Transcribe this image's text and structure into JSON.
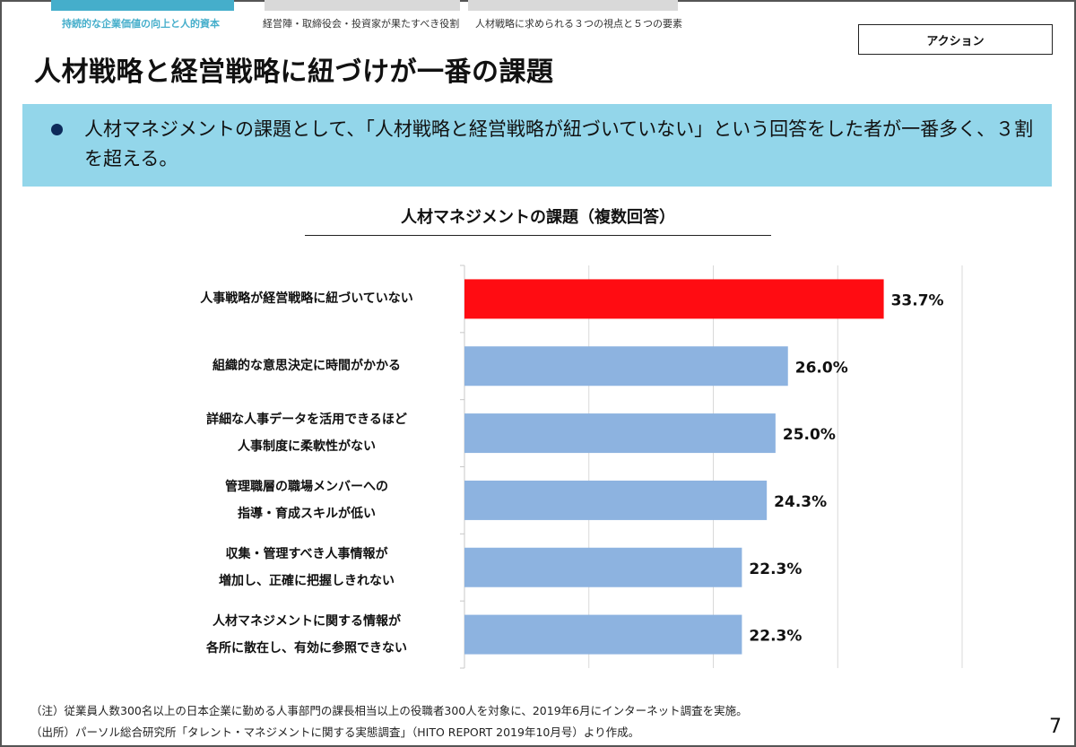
{
  "nav_tabs": [
    {
      "label": "持続的な企業価値の向上と人的資本",
      "active": true,
      "color": "#45aecb"
    },
    {
      "label": "経営陣・取締役会・投資家が果たすべき役割",
      "active": false,
      "color": "#d9d9d9"
    },
    {
      "label": "人材戦略に求められる３つの視点と５つの要素",
      "active": false,
      "color": "#d9d9d9"
    }
  ],
  "action_label": "アクション",
  "title": "人材戦略と経営戦略に紐づけが一番の課題",
  "callout": {
    "text": "人材マネジメントの課題として、「人材戦略と経営戦略が紐づいていない」という回答をした者が一番多く、３割を超える。",
    "background": "#93d6ea"
  },
  "chart_data": {
    "type": "bar",
    "orientation": "horizontal",
    "title": "人材マネジメントの課題（複数回答）",
    "categories": [
      "人事戦略が経営戦略に紐づいていない",
      "組織的な意思決定に時間がかかる",
      "詳細な人事データを活用できるほど\n人事制度に柔軟性がない",
      "管理職層の職場メンバーへの\n指導・育成スキルが低い",
      "収集・管理すべき人事情報が\n増加し、正確に把握しきれない",
      "人材マネジメントに関する情報が\n各所に散在し、有効に参照できない"
    ],
    "values": [
      33.7,
      26.0,
      25.0,
      24.3,
      22.3,
      22.3
    ],
    "data_labels": [
      "33.7%",
      "26.0%",
      "25.0%",
      "24.3%",
      "22.3%",
      "22.3%"
    ],
    "unit": "%",
    "xlim": [
      0,
      40
    ],
    "grid": true,
    "colors": {
      "highlight": "#ff0c12",
      "default": "#8db3e0"
    },
    "highlight_index": 0
  },
  "footnotes": [
    "（注）従業員人数300名以上の日本企業に勤める人事部門の課長相当以上の役職者300人を対象に、2019年6月にインターネット調査を実施。",
    "（出所）パーソル総合研究所「タレント・マネジメントに関する実態調査」（HITO REPORT 2019年10月号）より作成。"
  ],
  "page_number": "7"
}
